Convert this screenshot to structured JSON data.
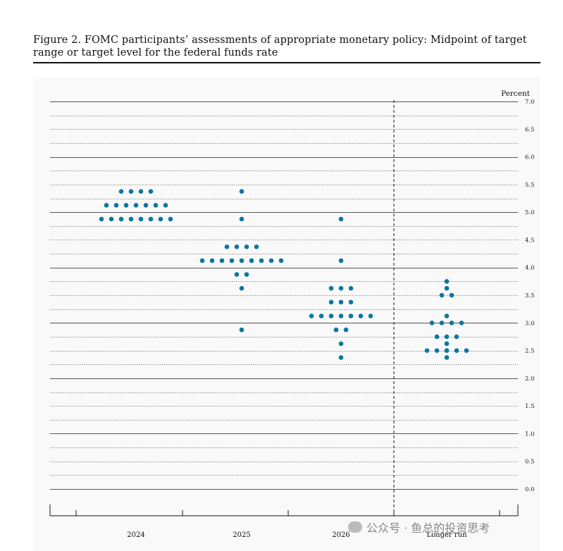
{
  "figure": {
    "caption": "Figure 2.  FOMC participants’ assessments of appropriate monetary policy: Midpoint of target range or target level for the federal funds rate"
  },
  "colors": {
    "dot": "#0d76a0",
    "grid": "#444444",
    "background": "#f9f9f9"
  },
  "chart_data": {
    "type": "scatter",
    "title": "",
    "ylabel": "Percent",
    "ylim": [
      0,
      7
    ],
    "yticks": [
      "0.0",
      "0.5",
      "1.0",
      "1.5",
      "2.0",
      "2.5",
      "3.0",
      "3.5",
      "4.0",
      "4.5",
      "5.0",
      "5.5",
      "6.0",
      "6.5",
      "7.0"
    ],
    "categories": [
      "2024",
      "2025",
      "2026",
      "Longer run"
    ],
    "dashed_separator_before": "Longer run",
    "series": [
      {
        "category": "2024",
        "points": [
          {
            "y": 5.375,
            "count": 4
          },
          {
            "y": 5.125,
            "count": 7
          },
          {
            "y": 4.875,
            "count": 8
          }
        ]
      },
      {
        "category": "2025",
        "points": [
          {
            "y": 5.375,
            "count": 1
          },
          {
            "y": 4.875,
            "count": 1
          },
          {
            "y": 4.375,
            "count": 4
          },
          {
            "y": 4.125,
            "count": 9
          },
          {
            "y": 3.875,
            "count": 2
          },
          {
            "y": 3.625,
            "count": 1
          },
          {
            "y": 2.875,
            "count": 1
          }
        ]
      },
      {
        "category": "2026",
        "points": [
          {
            "y": 4.875,
            "count": 1
          },
          {
            "y": 4.125,
            "count": 1
          },
          {
            "y": 3.625,
            "count": 3
          },
          {
            "y": 3.375,
            "count": 3
          },
          {
            "y": 3.125,
            "count": 7
          },
          {
            "y": 2.875,
            "count": 2
          },
          {
            "y": 2.625,
            "count": 1
          },
          {
            "y": 2.375,
            "count": 1
          }
        ]
      },
      {
        "category": "Longer run",
        "points": [
          {
            "y": 3.75,
            "count": 1
          },
          {
            "y": 3.625,
            "count": 1
          },
          {
            "y": 3.5,
            "count": 2
          },
          {
            "y": 3.125,
            "count": 1
          },
          {
            "y": 3.0,
            "count": 4
          },
          {
            "y": 2.75,
            "count": 3
          },
          {
            "y": 2.625,
            "count": 1
          },
          {
            "y": 2.5,
            "count": 5
          },
          {
            "y": 2.375,
            "count": 1
          }
        ]
      }
    ]
  },
  "watermark": {
    "text": "公众号 · 鱼总的投资思考"
  }
}
